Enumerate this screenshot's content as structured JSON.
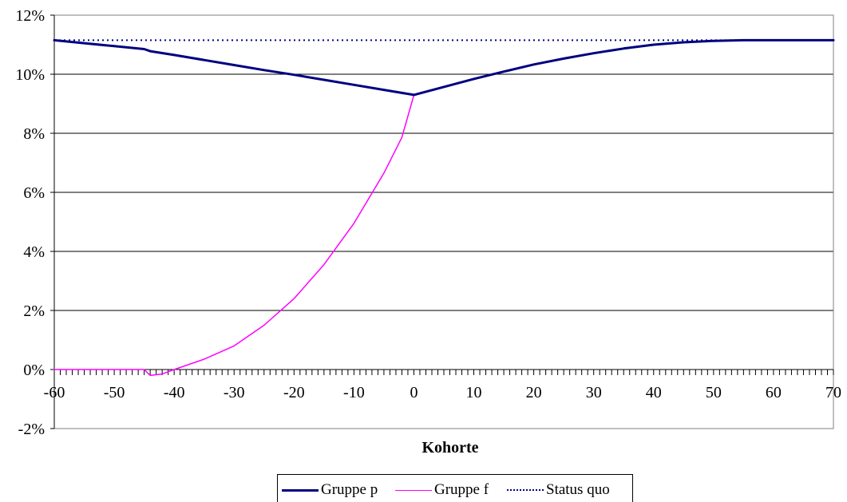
{
  "chart_data": {
    "type": "line",
    "title": "",
    "xlabel": "Kohorte",
    "ylabel": "",
    "xlim": [
      -60,
      70
    ],
    "ylim": [
      -0.02,
      0.12
    ],
    "xticks": [
      -60,
      -50,
      -40,
      -30,
      -20,
      -10,
      0,
      10,
      20,
      30,
      40,
      50,
      60,
      70
    ],
    "xtick_labels": [
      "-60",
      "-50",
      "-40",
      "-30",
      "-20",
      "-10",
      "0",
      "10",
      "20",
      "30",
      "40",
      "50",
      "60",
      "70"
    ],
    "yticks": [
      -0.02,
      0,
      0.02,
      0.04,
      0.06,
      0.08,
      0.1,
      0.12
    ],
    "ytick_labels": [
      "-2%",
      "0%",
      "2%",
      "4%",
      "6%",
      "8%",
      "10%",
      "12%"
    ],
    "grid": "horizontal",
    "legend_position": "bottom-center",
    "series": [
      {
        "name": "Gruppe p",
        "color": "#000080",
        "style": "solid-thick",
        "x": [
          -60,
          -55,
          -50,
          -45,
          -44,
          -40,
          -35,
          -30,
          -25,
          -20,
          -15,
          -10,
          -5,
          0,
          5,
          10,
          15,
          20,
          25,
          30,
          35,
          40,
          45,
          50,
          55,
          60,
          65,
          70
        ],
        "y": [
          0.1115,
          0.1105,
          0.1095,
          0.1085,
          0.1078,
          0.1065,
          0.1048,
          0.1031,
          0.1014,
          0.0998,
          0.0981,
          0.0964,
          0.0947,
          0.093,
          0.0957,
          0.0984,
          0.1009,
          0.1033,
          0.1053,
          0.1071,
          0.1087,
          0.11,
          0.1108,
          0.1113,
          0.1115,
          0.1115,
          0.1115,
          0.1115
        ]
      },
      {
        "name": "Gruppe f",
        "color": "#ff00ff",
        "style": "solid-thin",
        "x": [
          -60,
          -55,
          -50,
          -45,
          -44,
          -42,
          -40,
          -35,
          -30,
          -25,
          -20,
          -15,
          -10,
          -5,
          -2,
          0,
          5,
          10,
          15,
          20,
          25,
          30,
          35,
          40,
          45,
          50,
          55,
          60,
          65,
          70
        ],
        "y": [
          0,
          0,
          0,
          0,
          -0.002,
          -0.0015,
          0,
          0.0035,
          0.008,
          0.015,
          0.024,
          0.0355,
          0.0495,
          0.0665,
          0.0786,
          0.093,
          0.0957,
          0.0984,
          0.1009,
          0.1033,
          0.1053,
          0.1071,
          0.1087,
          0.11,
          0.1108,
          0.1113,
          0.1115,
          0.1115,
          0.1115,
          0.1115
        ]
      },
      {
        "name": "Status quo",
        "color": "#000080",
        "style": "dotted",
        "x": [
          -60,
          70
        ],
        "y": [
          0.1115,
          0.1115
        ]
      }
    ]
  }
}
